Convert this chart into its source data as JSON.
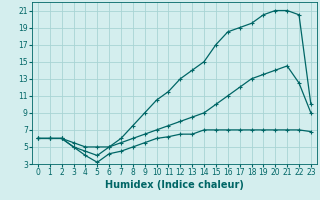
{
  "title": "",
  "xlabel": "Humidex (Indice chaleur)",
  "ylabel": "",
  "bg_color": "#d4eeee",
  "grid_color": "#a8d4d4",
  "line_color": "#006666",
  "xlim": [
    -0.5,
    23.5
  ],
  "ylim": [
    3,
    22
  ],
  "xticks": [
    0,
    1,
    2,
    3,
    4,
    5,
    6,
    7,
    8,
    9,
    10,
    11,
    12,
    13,
    14,
    15,
    16,
    17,
    18,
    19,
    20,
    21,
    22,
    23
  ],
  "yticks": [
    3,
    5,
    7,
    9,
    11,
    13,
    15,
    17,
    19,
    21
  ],
  "series1_x": [
    0,
    1,
    2,
    3,
    4,
    5,
    6,
    7,
    8,
    9,
    10,
    11,
    12,
    13,
    14,
    15,
    16,
    17,
    18,
    19,
    20,
    21,
    22,
    23
  ],
  "series1_y": [
    6,
    6,
    6,
    5.5,
    5,
    5,
    5,
    6,
    7.5,
    9,
    10.5,
    11.5,
    13,
    14,
    15,
    17,
    18.5,
    19,
    19.5,
    20.5,
    21,
    21,
    20.5,
    10
  ],
  "series2_x": [
    0,
    1,
    2,
    3,
    4,
    5,
    6,
    7,
    8,
    9,
    10,
    11,
    12,
    13,
    14,
    15,
    16,
    17,
    18,
    19,
    20,
    21,
    22,
    23
  ],
  "series2_y": [
    6,
    6,
    6,
    5,
    4.5,
    4,
    5,
    5.5,
    6,
    6.5,
    7,
    7.5,
    8,
    8.5,
    9,
    10,
    11,
    12,
    13,
    13.5,
    14,
    14.5,
    12.5,
    9
  ],
  "series3_x": [
    0,
    1,
    2,
    3,
    4,
    5,
    6,
    7,
    8,
    9,
    10,
    11,
    12,
    13,
    14,
    15,
    16,
    17,
    18,
    19,
    20,
    21,
    22,
    23
  ],
  "series3_y": [
    6,
    6,
    6,
    5,
    4,
    3.2,
    4.2,
    4.5,
    5,
    5.5,
    6,
    6.2,
    6.5,
    6.5,
    7,
    7,
    7,
    7,
    7,
    7,
    7,
    7,
    7,
    6.8
  ],
  "xlabel_fontsize": 7,
  "tick_fontsize": 5.5
}
